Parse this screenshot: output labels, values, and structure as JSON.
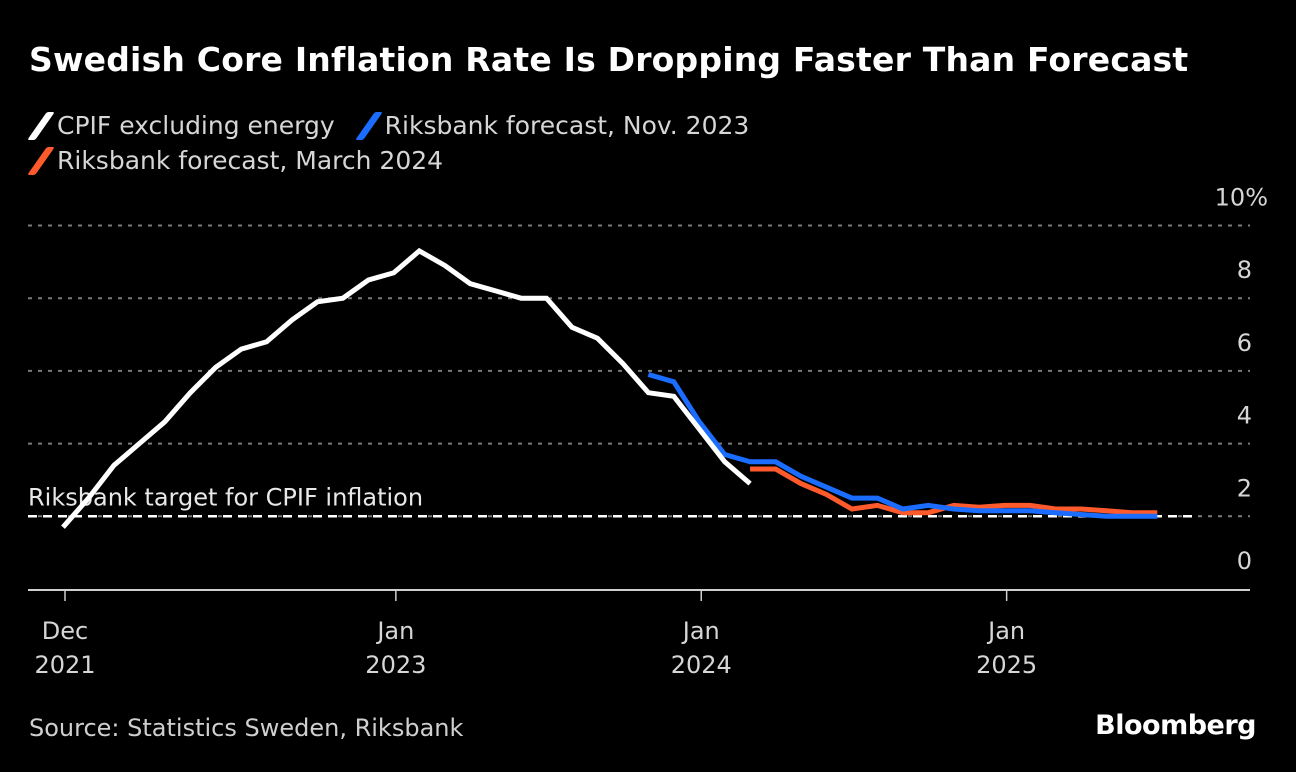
{
  "header": {
    "title": "Swedish Core Inflation Rate Is Dropping Faster Than Forecast"
  },
  "footer": {
    "source": "Source: Statistics Sweden, Riksbank",
    "brand": "Bloomberg"
  },
  "chart_data": {
    "type": "line",
    "title": "Swedish Core Inflation Rate Is Dropping Faster Than Forecast",
    "xlabel": "",
    "ylabel": "",
    "ylim": [
      0,
      10
    ],
    "y_ticks": [
      {
        "value": 10,
        "label": "10%"
      },
      {
        "value": 8,
        "label": "8"
      },
      {
        "value": 6,
        "label": "6"
      },
      {
        "value": 4,
        "label": "4"
      },
      {
        "value": 2,
        "label": "2"
      },
      {
        "value": 0,
        "label": "0"
      }
    ],
    "x_range": [
      "2021-11",
      "2025-11"
    ],
    "x_ticks": [
      {
        "date": "2021-12",
        "line1": "Dec",
        "line2": "2021"
      },
      {
        "date": "2023-01",
        "line1": "Jan",
        "line2": "2023"
      },
      {
        "date": "2024-01",
        "line1": "Jan",
        "line2": "2024"
      },
      {
        "date": "2025-01",
        "line1": "Jan",
        "line2": "2025"
      }
    ],
    "grid": true,
    "legend_position": "top-left",
    "reference_line": {
      "value": 2,
      "label": "Riksbank target for CPIF inflation",
      "color": "#ffffff"
    },
    "series": [
      {
        "name": "CPIF excluding energy",
        "color": "#ffffff",
        "start": "2021-12",
        "values": [
          1.7,
          2.5,
          3.4,
          4.0,
          4.6,
          5.4,
          6.1,
          6.6,
          6.8,
          7.4,
          7.9,
          8.0,
          8.5,
          8.7,
          9.3,
          8.9,
          8.4,
          8.2,
          8.0,
          8.0,
          7.2,
          6.9,
          6.2,
          5.4,
          5.3,
          4.4,
          3.5,
          2.9
        ]
      },
      {
        "name": "Riksbank forecast, Nov. 2023",
        "color": "#1a6dff",
        "start": "2023-11",
        "values": [
          5.9,
          5.7,
          4.6,
          3.7,
          3.5,
          3.5,
          3.1,
          2.8,
          2.5,
          2.5,
          2.2,
          2.3,
          2.2,
          2.15,
          2.15,
          2.15,
          2.1,
          2.05,
          2.0,
          2.0,
          2.0
        ]
      },
      {
        "name": "Riksbank forecast, March 2024",
        "color": "#ff5a2b",
        "start": "2024-03",
        "values": [
          3.3,
          3.3,
          2.9,
          2.6,
          2.2,
          2.3,
          2.1,
          2.1,
          2.3,
          2.25,
          2.3,
          2.3,
          2.2,
          2.2,
          2.15,
          2.1,
          2.1
        ]
      }
    ]
  }
}
